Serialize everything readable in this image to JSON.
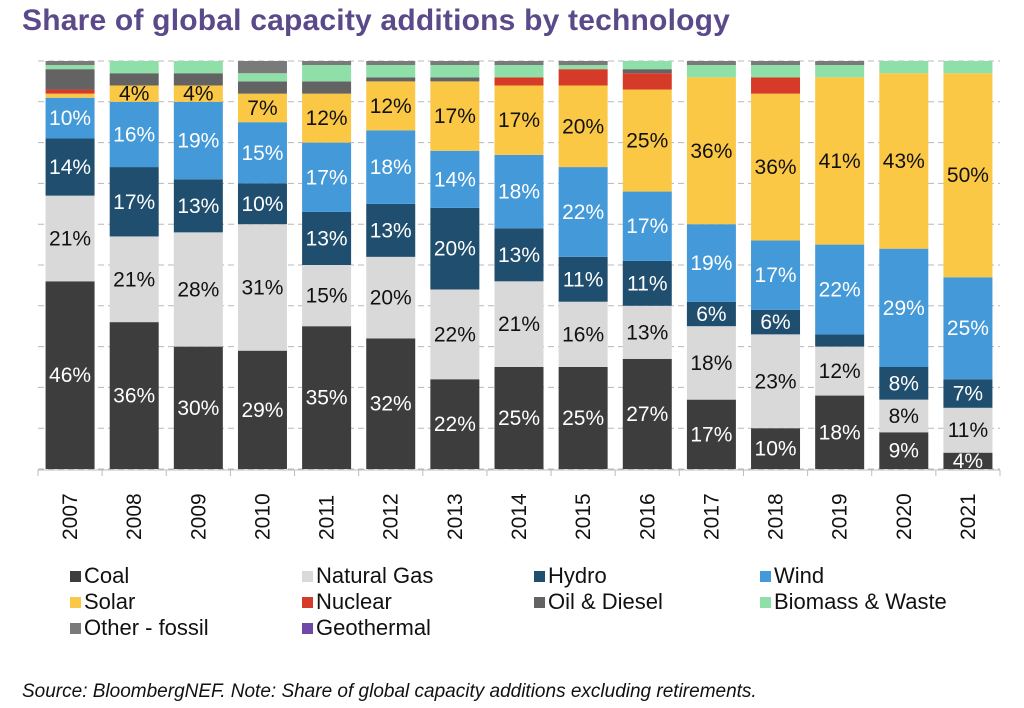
{
  "title": "Share of global capacity additions by technology",
  "source": "Source: BloombergNEF. Note: Share of global capacity additions excluding retirements.",
  "chart_data": {
    "type": "bar",
    "stacked": true,
    "title": "Share of global capacity additions by technology",
    "xlabel": "",
    "ylabel": "",
    "ylim": [
      0,
      100
    ],
    "grid": true,
    "legend_position": "bottom",
    "categories": [
      "2007",
      "2008",
      "2009",
      "2010",
      "2011",
      "2012",
      "2013",
      "2014",
      "2015",
      "2016",
      "2017",
      "2018",
      "2019",
      "2020",
      "2021"
    ],
    "series": [
      {
        "name": "Coal",
        "color": "#3d3d3d",
        "label_color": "#ffffff",
        "values": [
          46,
          36,
          30,
          29,
          35,
          32,
          22,
          25,
          25,
          27,
          17,
          10,
          18,
          9,
          4
        ],
        "labels": [
          "46%",
          "36%",
          "30%",
          "29%",
          "35%",
          "32%",
          "22%",
          "25%",
          "25%",
          "27%",
          "17%",
          "10%",
          "18%",
          "9%",
          "4%"
        ]
      },
      {
        "name": "Natural Gas",
        "color": "#d9d9d9",
        "label_color": "#111111",
        "values": [
          21,
          21,
          28,
          31,
          15,
          20,
          22,
          21,
          16,
          13,
          18,
          23,
          12,
          8,
          11
        ],
        "labels": [
          "21%",
          "21%",
          "28%",
          "31%",
          "15%",
          "20%",
          "22%",
          "21%",
          "16%",
          "13%",
          "18%",
          "23%",
          "12%",
          "8%",
          "11%"
        ]
      },
      {
        "name": "Hydro",
        "color": "#1f4e6e",
        "label_color": "#ffffff",
        "values": [
          14,
          17,
          13,
          10,
          13,
          13,
          20,
          13,
          11,
          11,
          6,
          6,
          3,
          8,
          7
        ],
        "labels": [
          "14%",
          "17%",
          "13%",
          "10%",
          "13%",
          "13%",
          "20%",
          "13%",
          "11%",
          "11%",
          "6%",
          "6%",
          "",
          "8%",
          "7%"
        ]
      },
      {
        "name": "Wind",
        "color": "#4499d9",
        "label_color": "#ffffff",
        "values": [
          10,
          16,
          19,
          15,
          17,
          18,
          14,
          18,
          22,
          17,
          19,
          17,
          22,
          29,
          25
        ],
        "labels": [
          "10%",
          "16%",
          "19%",
          "15%",
          "17%",
          "18%",
          "14%",
          "18%",
          "22%",
          "17%",
          "19%",
          "17%",
          "22%",
          "29%",
          "25%"
        ]
      },
      {
        "name": "Solar",
        "color": "#fbc846",
        "label_color": "#111111",
        "values": [
          1,
          4,
          4,
          7,
          12,
          12,
          17,
          17,
          20,
          25,
          36,
          36,
          41,
          43,
          50
        ],
        "labels": [
          "",
          "4%",
          "4%",
          "7%",
          "12%",
          "12%",
          "17%",
          "17%",
          "20%",
          "25%",
          "36%",
          "36%",
          "41%",
          "43%",
          "50%"
        ]
      },
      {
        "name": "Nuclear",
        "color": "#d63b2a",
        "label_color": "#ffffff",
        "values": [
          1,
          0,
          0,
          0,
          0,
          0,
          0,
          2,
          4,
          4,
          0,
          4,
          0,
          0,
          0
        ],
        "labels": [
          "",
          "",
          "",
          "",
          "",
          "",
          "",
          "",
          "",
          "",
          "",
          "",
          "",
          "",
          ""
        ]
      },
      {
        "name": "Oil & Diesel",
        "color": "#636363",
        "label_color": "#ffffff",
        "values": [
          5,
          3,
          3,
          3,
          3,
          1,
          1,
          0,
          0,
          1,
          0,
          0,
          0,
          0,
          0
        ],
        "labels": [
          "",
          "",
          "",
          "",
          "",
          "",
          "",
          "",
          "",
          "",
          "",
          "",
          "",
          "",
          ""
        ]
      },
      {
        "name": "Biomass & Waste",
        "color": "#8fdfa8",
        "label_color": "#111111",
        "values": [
          1,
          3,
          3,
          2,
          4,
          3,
          3,
          3,
          1,
          2,
          3,
          3,
          3,
          3,
          3
        ],
        "labels": [
          "",
          "",
          "",
          "",
          "",
          "",
          "",
          "",
          "",
          "",
          "",
          "",
          "",
          "",
          ""
        ]
      },
      {
        "name": "Other - fossil",
        "color": "#7a7a7a",
        "label_color": "#ffffff",
        "values": [
          1,
          0,
          0,
          3,
          1,
          1,
          1,
          1,
          1,
          0,
          1,
          1,
          1,
          0,
          0
        ],
        "labels": [
          "",
          "",
          "",
          "",
          "",
          "",
          "",
          "",
          "",
          "",
          "",
          "",
          "",
          "",
          ""
        ]
      },
      {
        "name": "Geothermal",
        "color": "#7048a8",
        "label_color": "#ffffff",
        "values": [
          0,
          0,
          0,
          0,
          0,
          0,
          0,
          0,
          0,
          0,
          0,
          0,
          0,
          0,
          0
        ],
        "labels": [
          "",
          "",
          "",
          "",
          "",
          "",
          "",
          "",
          "",
          "",
          "",
          "",
          "",
          "",
          ""
        ]
      }
    ]
  },
  "legend": [
    {
      "name": "Coal",
      "color": "#3d3d3d"
    },
    {
      "name": "Natural Gas",
      "color": "#d9d9d9"
    },
    {
      "name": "Hydro",
      "color": "#1f4e6e"
    },
    {
      "name": "Wind",
      "color": "#4499d9"
    },
    {
      "name": "Solar",
      "color": "#fbc846"
    },
    {
      "name": "Nuclear",
      "color": "#d63b2a"
    },
    {
      "name": "Oil & Diesel",
      "color": "#636363"
    },
    {
      "name": "Biomass & Waste",
      "color": "#8fdfa8"
    },
    {
      "name": "Other - fossil",
      "color": "#7a7a7a"
    },
    {
      "name": "Geothermal",
      "color": "#7048a8"
    }
  ]
}
